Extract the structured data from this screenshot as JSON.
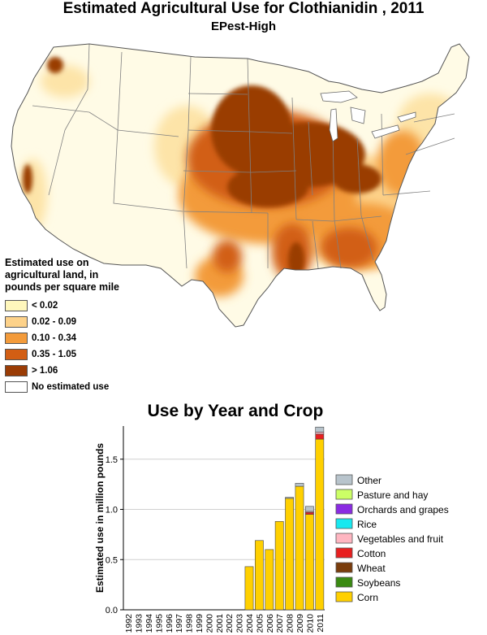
{
  "page_title": "Estimated Agricultural Use for Clothianidin , 2011",
  "subtitle": "EPest-High",
  "map_legend": {
    "title_lines": [
      "Estimated use on",
      "agricultural land, in",
      "pounds per square mile"
    ],
    "items": [
      {
        "label": "< 0.02",
        "color": "#fff7bc"
      },
      {
        "label": "0.02 - 0.09",
        "color": "#fdd28a"
      },
      {
        "label": "0.10 - 0.34",
        "color": "#f39b3b"
      },
      {
        "label": "0.35 - 1.05",
        "color": "#d25e14"
      },
      {
        "label": "> 1.06",
        "color": "#9a3c05"
      },
      {
        "label": "No estimated use",
        "color": "#ffffff"
      }
    ]
  },
  "chart_data": {
    "type": "bar",
    "title": "Use by Year and Crop",
    "ylabel": "Estimated use in million pounds",
    "ylim": [
      0,
      1.83
    ],
    "yticks": [
      0.0,
      0.5,
      1.0,
      1.5
    ],
    "ytick_labels": [
      "0.0",
      "0.5",
      "1.0",
      "1.5"
    ],
    "grid": true,
    "legend_position": "right",
    "categories": [
      "1992",
      "1993",
      "1994",
      "1995",
      "1996",
      "1997",
      "1998",
      "1999",
      "2000",
      "2001",
      "2002",
      "2003",
      "2004",
      "2005",
      "2006",
      "2007",
      "2008",
      "2009",
      "2010",
      "2011"
    ],
    "series": [
      {
        "name": "Corn",
        "color": "#ffd000",
        "values": [
          0,
          0,
          0,
          0,
          0,
          0,
          0,
          0,
          0,
          0,
          0,
          0,
          0.43,
          0.69,
          0.6,
          0.88,
          1.11,
          1.23,
          0.95,
          1.7
        ]
      },
      {
        "name": "Soybeans",
        "color": "#3a8a12",
        "values": [
          0,
          0,
          0,
          0,
          0,
          0,
          0,
          0,
          0,
          0,
          0,
          0,
          0,
          0,
          0,
          0,
          0,
          0,
          0,
          0
        ]
      },
      {
        "name": "Wheat",
        "color": "#7a3d0c",
        "values": [
          0,
          0,
          0,
          0,
          0,
          0,
          0,
          0,
          0,
          0,
          0,
          0,
          0,
          0,
          0,
          0,
          0,
          0,
          0,
          0
        ]
      },
      {
        "name": "Cotton",
        "color": "#e82020",
        "values": [
          0,
          0,
          0,
          0,
          0,
          0,
          0,
          0,
          0,
          0,
          0,
          0,
          0,
          0,
          0,
          0,
          0,
          0,
          0.02,
          0.05
        ]
      },
      {
        "name": "Vegetables and fruit",
        "color": "#ffb6c1",
        "values": [
          0,
          0,
          0,
          0,
          0,
          0,
          0,
          0,
          0,
          0,
          0,
          0,
          0,
          0,
          0,
          0,
          0,
          0,
          0.01,
          0.02
        ]
      },
      {
        "name": "Rice",
        "color": "#18e8f0",
        "values": [
          0,
          0,
          0,
          0,
          0,
          0,
          0,
          0,
          0,
          0,
          0,
          0,
          0,
          0,
          0,
          0,
          0,
          0,
          0,
          0
        ]
      },
      {
        "name": "Orchards and grapes",
        "color": "#8a2be2",
        "values": [
          0,
          0,
          0,
          0,
          0,
          0,
          0,
          0,
          0,
          0,
          0,
          0,
          0,
          0,
          0,
          0,
          0,
          0,
          0,
          0
        ]
      },
      {
        "name": "Pasture and hay",
        "color": "#ccff66",
        "values": [
          0,
          0,
          0,
          0,
          0,
          0,
          0,
          0,
          0,
          0,
          0,
          0,
          0,
          0,
          0,
          0,
          0,
          0,
          0,
          0
        ]
      },
      {
        "name": "Other",
        "color": "#b8c4cc",
        "values": [
          0,
          0,
          0,
          0,
          0,
          0,
          0,
          0,
          0,
          0,
          0,
          0,
          0,
          0,
          0,
          0,
          0.01,
          0.03,
          0.05,
          0.05
        ]
      }
    ]
  }
}
